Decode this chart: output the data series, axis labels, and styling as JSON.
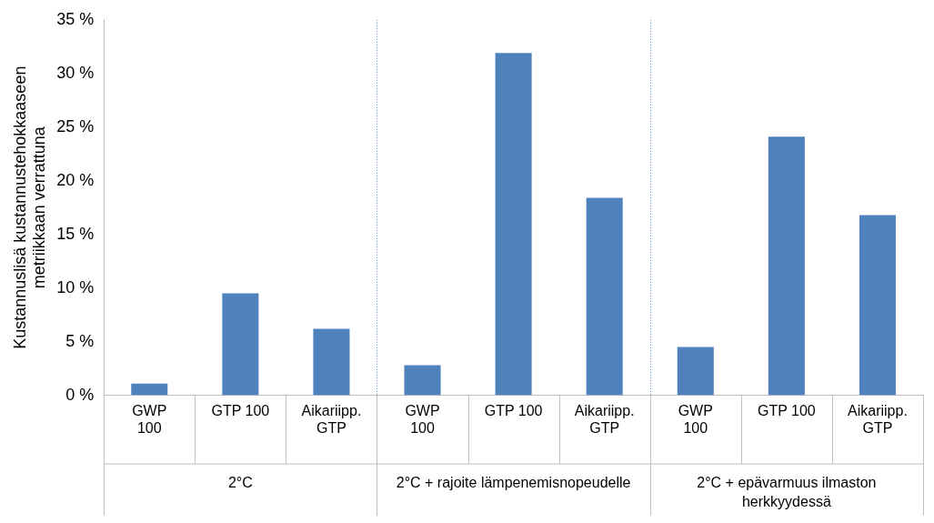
{
  "chart_data": {
    "type": "bar",
    "ylabel": "Kustannuslisä kustannustehokkaaseen metriikkaan verrattuna",
    "categories": [
      "GWP 100",
      "GTP 100",
      "Aikariipp. GTP",
      "GWP 100",
      "GTP 100",
      "Aikariipp. GTP",
      "GWP 100",
      "GTP 100",
      "Aikariipp. GTP"
    ],
    "values": [
      1.1,
      9.5,
      6.2,
      2.8,
      31.9,
      18.4,
      4.5,
      24.1,
      16.8
    ],
    "color": "#4f81bd",
    "ylim": [
      0,
      35
    ],
    "yticks": [
      {
        "value": 0,
        "label": "0 %"
      },
      {
        "value": 5,
        "label": "5 %"
      },
      {
        "value": 10,
        "label": "10 %"
      },
      {
        "value": 15,
        "label": "15 %"
      },
      {
        "value": 20,
        "label": "20 %"
      },
      {
        "value": 25,
        "label": "25 %"
      },
      {
        "value": 30,
        "label": "30 %"
      },
      {
        "value": 35,
        "label": "35 %"
      }
    ],
    "annotations": [
      "2°C",
      "2°C + rajoite lämpenemisnopeudelle",
      "2°C + epävarmuus ilmaston herkkyydessä"
    ],
    "grid": false,
    "legend": false
  }
}
